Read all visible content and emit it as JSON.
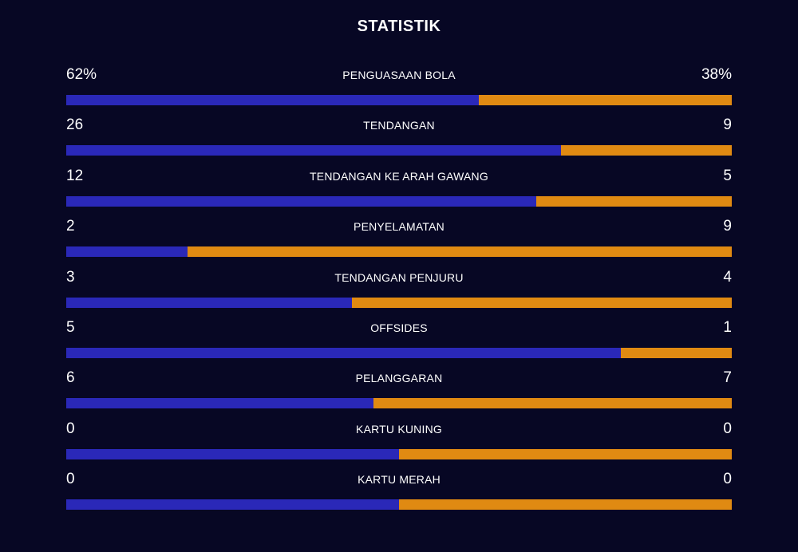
{
  "title": "STATISTIK",
  "colors": {
    "background": "#070724",
    "home": "#2a28b8",
    "away": "#e08a12"
  },
  "stats": [
    {
      "home": "62%",
      "label": "PENGUASAAN BOLA",
      "away": "38%",
      "home_share": 0.62
    },
    {
      "home": "26",
      "label": "TENDANGAN",
      "away": "9",
      "home_share": 0.743
    },
    {
      "home": "12",
      "label": "TENDANGAN KE ARAH GAWANG",
      "away": "5",
      "home_share": 0.706
    },
    {
      "home": "2",
      "label": "PENYELAMATAN",
      "away": "9",
      "home_share": 0.182
    },
    {
      "home": "3",
      "label": "TENDANGAN PENJURU",
      "away": "4",
      "home_share": 0.429
    },
    {
      "home": "5",
      "label": "OFFSIDES",
      "away": "1",
      "home_share": 0.833
    },
    {
      "home": "6",
      "label": "PELANGGARAN",
      "away": "7",
      "home_share": 0.462
    },
    {
      "home": "0",
      "label": "KARTU KUNING",
      "away": "0",
      "home_share": 0.5
    },
    {
      "home": "0",
      "label": "KARTU MERAH",
      "away": "0",
      "home_share": 0.5
    }
  ]
}
